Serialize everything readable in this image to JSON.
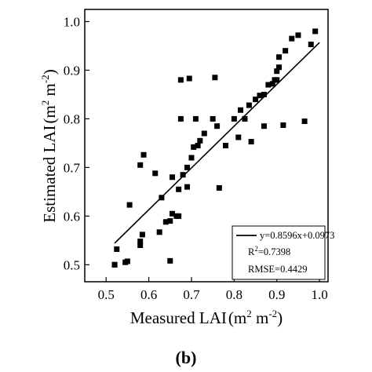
{
  "chart_data": {
    "type": "scatter",
    "title": "",
    "xlabel_main": "Measured LAI",
    "ylabel_main": "Estimated LAI",
    "unit": {
      "m1": "m",
      "e1": "2",
      "m2": "m",
      "e2": "-2"
    },
    "xlim": [
      0.45,
      1.02
    ],
    "ylim": [
      0.465,
      1.025
    ],
    "xticks": [
      "0.5",
      "0.6",
      "0.7",
      "0.8",
      "0.9",
      "1.0"
    ],
    "yticks": [
      "0.5",
      "0.6",
      "0.7",
      "0.8",
      "0.9",
      "1.0"
    ],
    "grid": false,
    "legend_position": "bottom-right",
    "legend": {
      "equation": "y=0.8596x+0.0973",
      "r_label": "R",
      "r_exp": "2",
      "r_value": "=0.7398",
      "rmse": "RMSE=0.4429"
    },
    "fit_line": {
      "slope": 0.8596,
      "intercept": 0.0973,
      "x_range": [
        0.52,
        1.0
      ]
    },
    "points": [
      [
        0.52,
        0.5
      ],
      [
        0.52,
        0.5
      ],
      [
        0.525,
        0.532
      ],
      [
        0.545,
        0.505
      ],
      [
        0.55,
        0.507
      ],
      [
        0.555,
        0.623
      ],
      [
        0.58,
        0.54
      ],
      [
        0.58,
        0.548
      ],
      [
        0.58,
        0.705
      ],
      [
        0.585,
        0.562
      ],
      [
        0.588,
        0.726
      ],
      [
        0.615,
        0.688
      ],
      [
        0.625,
        0.567
      ],
      [
        0.63,
        0.638
      ],
      [
        0.64,
        0.588
      ],
      [
        0.65,
        0.508
      ],
      [
        0.65,
        0.59
      ],
      [
        0.655,
        0.605
      ],
      [
        0.655,
        0.68
      ],
      [
        0.665,
        0.6
      ],
      [
        0.67,
        0.6
      ],
      [
        0.67,
        0.655
      ],
      [
        0.675,
        0.88
      ],
      [
        0.675,
        0.8
      ],
      [
        0.68,
        0.685
      ],
      [
        0.69,
        0.66
      ],
      [
        0.69,
        0.7
      ],
      [
        0.695,
        0.883
      ],
      [
        0.7,
        0.72
      ],
      [
        0.705,
        0.742
      ],
      [
        0.71,
        0.8
      ],
      [
        0.715,
        0.745
      ],
      [
        0.72,
        0.755
      ],
      [
        0.73,
        0.77
      ],
      [
        0.75,
        0.8
      ],
      [
        0.755,
        0.885
      ],
      [
        0.76,
        0.785
      ],
      [
        0.765,
        0.658
      ],
      [
        0.78,
        0.745
      ],
      [
        0.8,
        0.8
      ],
      [
        0.81,
        0.762
      ],
      [
        0.815,
        0.818
      ],
      [
        0.825,
        0.8
      ],
      [
        0.835,
        0.828
      ],
      [
        0.84,
        0.753
      ],
      [
        0.85,
        0.84
      ],
      [
        0.86,
        0.848
      ],
      [
        0.87,
        0.785
      ],
      [
        0.87,
        0.85
      ],
      [
        0.88,
        0.87
      ],
      [
        0.89,
        0.872
      ],
      [
        0.895,
        0.88
      ],
      [
        0.9,
        0.88
      ],
      [
        0.9,
        0.898
      ],
      [
        0.905,
        0.906
      ],
      [
        0.905,
        0.927
      ],
      [
        0.915,
        0.787
      ],
      [
        0.92,
        0.94
      ],
      [
        0.935,
        0.965
      ],
      [
        0.95,
        0.972
      ],
      [
        0.965,
        0.795
      ],
      [
        0.98,
        0.953
      ],
      [
        0.99,
        0.98
      ]
    ],
    "panel_label": "(b)"
  }
}
